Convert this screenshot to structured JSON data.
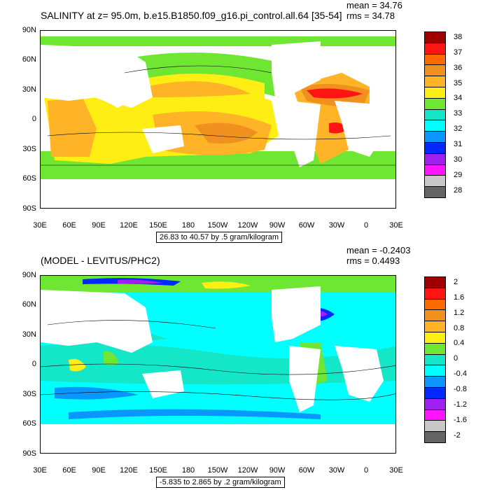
{
  "panels": [
    {
      "title": "SALINITY at z=  95.0m, b.e15.B1850.f09_g16.pi_control.all.64 [35-54]",
      "mean": "mean = 34.76",
      "rms": "rms = 34.78",
      "range": "26.83 to 40.57 by .5 gram/kilogram",
      "lat_labels": [
        "90N",
        "60N",
        "30N",
        "0",
        "30S",
        "60S",
        "90S"
      ],
      "lon_labels": [
        "30E",
        "60E",
        "90E",
        "120E",
        "150E",
        "180",
        "150W",
        "120W",
        "90W",
        "60W",
        "30W",
        "0",
        "30E"
      ],
      "colorbar": {
        "labels": [
          "38",
          "37",
          "36",
          "35",
          "34",
          "33",
          "32",
          "31",
          "30",
          "29",
          "28"
        ],
        "colors": [
          "#a00000",
          "#ff1414",
          "#ff6a00",
          "#f0901e",
          "#ffb428",
          "#ffee14",
          "#6ee632",
          "#14e6c8",
          "#00ffff",
          "#0a96ff",
          "#0028ff",
          "#a020f0",
          "#ff14ff",
          "#c8c8c8",
          "#646464"
        ]
      }
    },
    {
      "title": "(MODEL - LEVITUS/PHC2)",
      "mean": "mean = -0.2403",
      "rms": "rms = 0.4493",
      "range": "-5.835 to 2.865 by .2 gram/kilogram",
      "lat_labels": [
        "90N",
        "60N",
        "30N",
        "0",
        "30S",
        "60S",
        "90S"
      ],
      "lon_labels": [
        "30E",
        "60E",
        "90E",
        "120E",
        "150E",
        "180",
        "150W",
        "120W",
        "90W",
        "60W",
        "30W",
        "0",
        "30E"
      ],
      "colorbar": {
        "labels": [
          "2",
          "1.6",
          "1.2",
          "0.8",
          "0.4",
          "0",
          "-0.4",
          "-0.8",
          "-1.2",
          "-1.6",
          "-2"
        ],
        "colors": [
          "#a00000",
          "#ff1414",
          "#ff6a00",
          "#f0901e",
          "#ffb428",
          "#ffee14",
          "#6ee632",
          "#14e6c8",
          "#00ffff",
          "#0a96ff",
          "#0028ff",
          "#a020f0",
          "#ff14ff",
          "#c8c8c8",
          "#646464"
        ]
      }
    }
  ]
}
